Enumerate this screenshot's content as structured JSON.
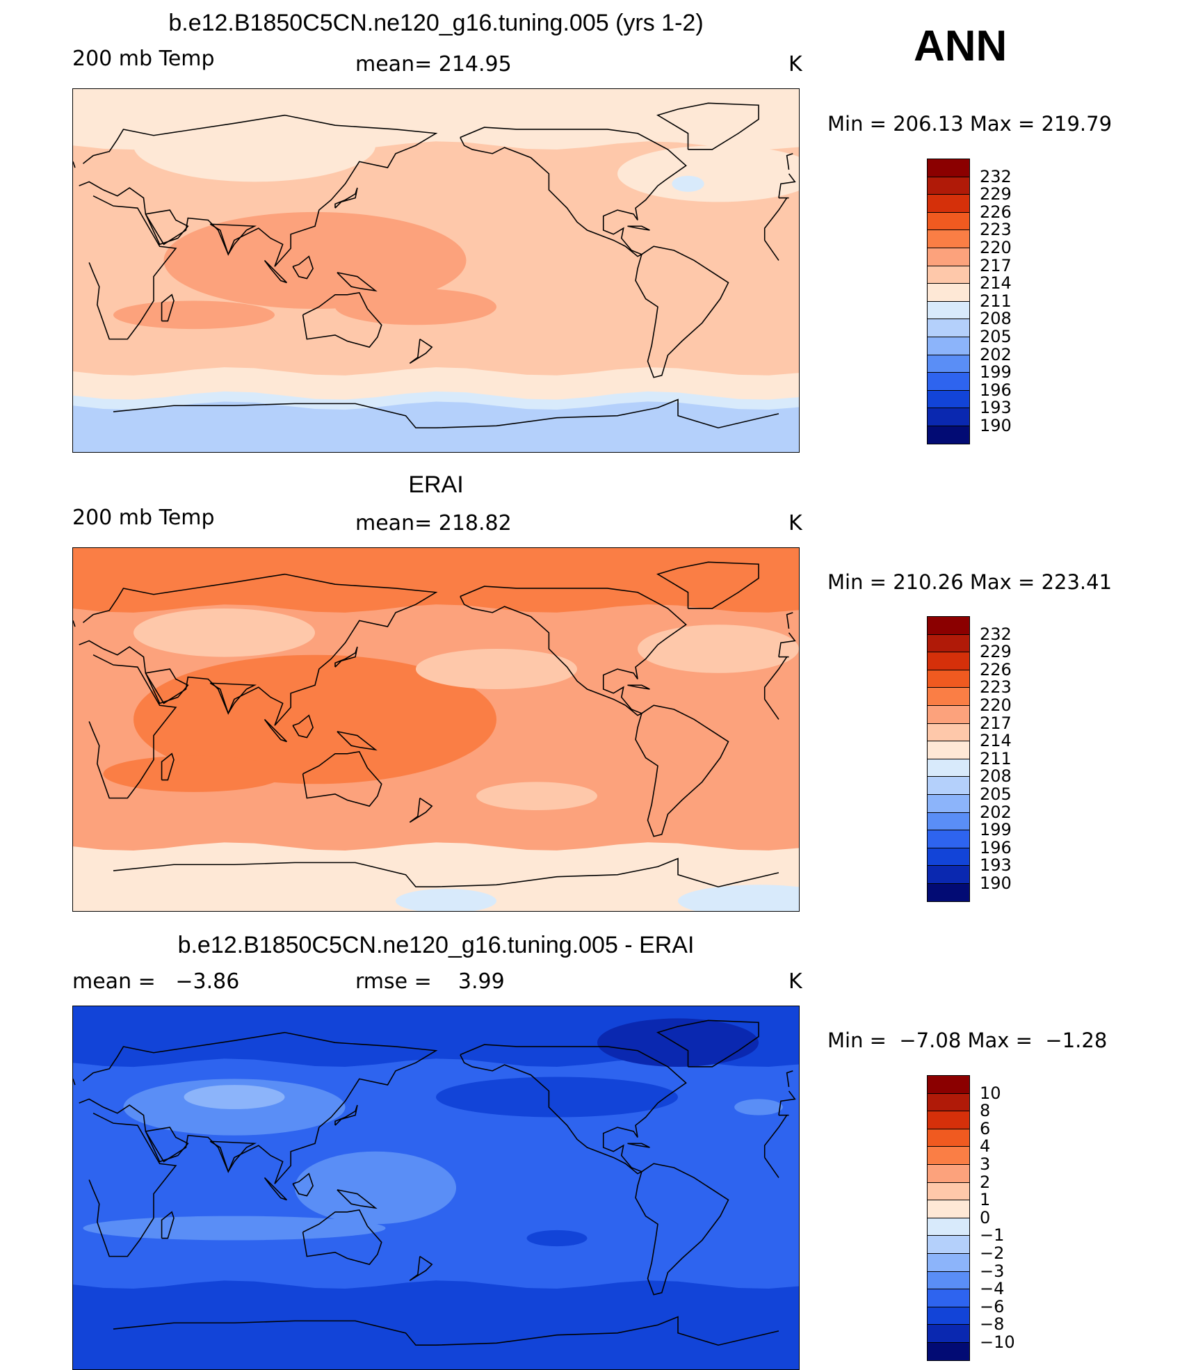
{
  "season": "ANN",
  "panels": [
    {
      "title": "b.e12.B1850C5CN.ne120_g16.tuning.005 (yrs 1-2)",
      "left": "200 mb Temp",
      "center": "mean= 214.95",
      "units": "K",
      "minmax": "Min = 206.13 Max = 219.79",
      "colorbar": {
        "labels": [
          "232",
          "229",
          "226",
          "223",
          "220",
          "217",
          "214",
          "211",
          "208",
          "205",
          "202",
          "199",
          "196",
          "193",
          "190"
        ],
        "colors": [
          "#8b0000",
          "#b01a08",
          "#d5300a",
          "#f05a20",
          "#fa7e45",
          "#fca27c",
          "#fec8aa",
          "#fee8d6",
          "#d8eafb",
          "#b4d0fb",
          "#8cb4fa",
          "#5a8ef6",
          "#2e64ef",
          "#1244d8",
          "#0a28b0",
          "#020b74"
        ]
      },
      "field": {
        "base": "#fec8aa",
        "blobs": [
          {
            "shape": "band",
            "lat0": -50,
            "lat1": -90,
            "color": "#fee8d6"
          },
          {
            "shape": "band",
            "lat0": -62,
            "lat1": -90,
            "color": "#d8eafb"
          },
          {
            "shape": "band",
            "lat0": -67,
            "lat1": -90,
            "color": "#b4d0fb"
          },
          {
            "shape": "band",
            "lat0": 62,
            "lat1": 90,
            "color": "#fee8d6"
          },
          {
            "shape": "ellipse",
            "lon": 90,
            "lat": 62,
            "rx": 60,
            "ry": 18,
            "color": "#fee8d6"
          },
          {
            "shape": "ellipse",
            "lon": -40,
            "lat": 48,
            "rx": 50,
            "ry": 14,
            "color": "#fee8d6"
          },
          {
            "shape": "ellipse",
            "lon": -55,
            "lat": 43,
            "rx": 8,
            "ry": 4,
            "color": "#d8eafb"
          },
          {
            "shape": "ellipse",
            "lon": 120,
            "lat": 5,
            "rx": 75,
            "ry": 24,
            "color": "#fca27c"
          },
          {
            "shape": "ellipse",
            "lon": 60,
            "lat": -22,
            "rx": 40,
            "ry": 7,
            "color": "#fca27c"
          },
          {
            "shape": "ellipse",
            "lon": 170,
            "lat": -18,
            "rx": 40,
            "ry": 9,
            "color": "#fca27c"
          }
        ]
      },
      "top": 124
    },
    {
      "title": "ERAI",
      "left": "200 mb Temp",
      "center": "mean= 218.82",
      "units": "K",
      "minmax": "Min = 210.26 Max = 223.41",
      "colorbar": {
        "labels": [
          "232",
          "229",
          "226",
          "223",
          "220",
          "217",
          "214",
          "211",
          "208",
          "205",
          "202",
          "199",
          "196",
          "193",
          "190"
        ],
        "colors": [
          "#8b0000",
          "#b01a08",
          "#d5300a",
          "#f05a20",
          "#fa7e45",
          "#fca27c",
          "#fec8aa",
          "#fee8d6",
          "#d8eafb",
          "#b4d0fb",
          "#8cb4fa",
          "#5a8ef6",
          "#2e64ef",
          "#1244d8",
          "#0a28b0",
          "#020b74"
        ]
      },
      "field": {
        "base": "#fca27c",
        "blobs": [
          {
            "shape": "band",
            "lat0": 60,
            "lat1": 90,
            "color": "#fa7e45"
          },
          {
            "shape": "ellipse",
            "lon": 120,
            "lat": 5,
            "rx": 90,
            "ry": 32,
            "color": "#fa7e45"
          },
          {
            "shape": "ellipse",
            "lon": 60,
            "lat": -22,
            "rx": 45,
            "ry": 9,
            "color": "#fa7e45"
          },
          {
            "shape": "ellipse",
            "lon": 75,
            "lat": 48,
            "rx": 45,
            "ry": 12,
            "color": "#fec8aa"
          },
          {
            "shape": "ellipse",
            "lon": -150,
            "lat": 30,
            "rx": 40,
            "ry": 10,
            "color": "#fec8aa"
          },
          {
            "shape": "ellipse",
            "lon": -40,
            "lat": 40,
            "rx": 40,
            "ry": 12,
            "color": "#fec8aa"
          },
          {
            "shape": "ellipse",
            "lon": -130,
            "lat": -33,
            "rx": 30,
            "ry": 7,
            "color": "#fec8aa"
          },
          {
            "shape": "band",
            "lat0": -58,
            "lat1": -90,
            "color": "#fee8d6"
          },
          {
            "shape": "ellipse",
            "lon": -20,
            "lat": -85,
            "rx": 40,
            "ry": 8,
            "color": "#d8eafb"
          },
          {
            "shape": "ellipse",
            "lon": -175,
            "lat": -85,
            "rx": 25,
            "ry": 6,
            "color": "#d8eafb"
          }
        ]
      },
      "top": 787
    },
    {
      "title": "b.e12.B1850C5CN.ne120_g16.tuning.005 - ERAI",
      "left": "mean =   −3.86",
      "center": "rmse =    3.99",
      "units": "K",
      "minmax": "Min =  −7.08 Max =  −1.28",
      "colorbar": {
        "labels": [
          "10",
          "8",
          "6",
          "4",
          "3",
          "2",
          "1",
          "0",
          "−1",
          "−2",
          "−3",
          "−4",
          "−6",
          "−8",
          "−10"
        ],
        "colors": [
          "#8b0000",
          "#b01a08",
          "#d5300a",
          "#f05a20",
          "#fa7e45",
          "#fca27c",
          "#fec8aa",
          "#fee8d6",
          "#d8eafb",
          "#b4d0fb",
          "#8cb4fa",
          "#5a8ef6",
          "#2e64ef",
          "#1244d8",
          "#0a28b0",
          "#020b74"
        ]
      },
      "field": {
        "base": "#2e64ef",
        "blobs": [
          {
            "shape": "band",
            "lat0": 62,
            "lat1": 90,
            "color": "#1244d8"
          },
          {
            "shape": "band",
            "lat0": -48,
            "lat1": -90,
            "color": "#1244d8"
          },
          {
            "shape": "ellipse",
            "lon": -60,
            "lat": 72,
            "rx": 40,
            "ry": 12,
            "color": "#0a28b0"
          },
          {
            "shape": "ellipse",
            "lon": -120,
            "lat": 45,
            "rx": 60,
            "ry": 10,
            "color": "#1244d8"
          },
          {
            "shape": "ellipse",
            "lon": 80,
            "lat": 40,
            "rx": 55,
            "ry": 14,
            "color": "#5a8ef6"
          },
          {
            "shape": "ellipse",
            "lon": 80,
            "lat": 45,
            "rx": 25,
            "ry": 6,
            "color": "#8cb4fa"
          },
          {
            "shape": "ellipse",
            "lon": 150,
            "lat": 0,
            "rx": 40,
            "ry": 18,
            "color": "#5a8ef6"
          },
          {
            "shape": "ellipse",
            "lon": 80,
            "lat": -20,
            "rx": 75,
            "ry": 6,
            "color": "#5a8ef6"
          },
          {
            "shape": "ellipse",
            "lon": -20,
            "lat": 40,
            "rx": 12,
            "ry": 4,
            "color": "#5a8ef6"
          },
          {
            "shape": "ellipse",
            "lon": -120,
            "lat": -25,
            "rx": 15,
            "ry": 4,
            "color": "#1244d8"
          }
        ]
      },
      "top": 1449
    }
  ]
}
